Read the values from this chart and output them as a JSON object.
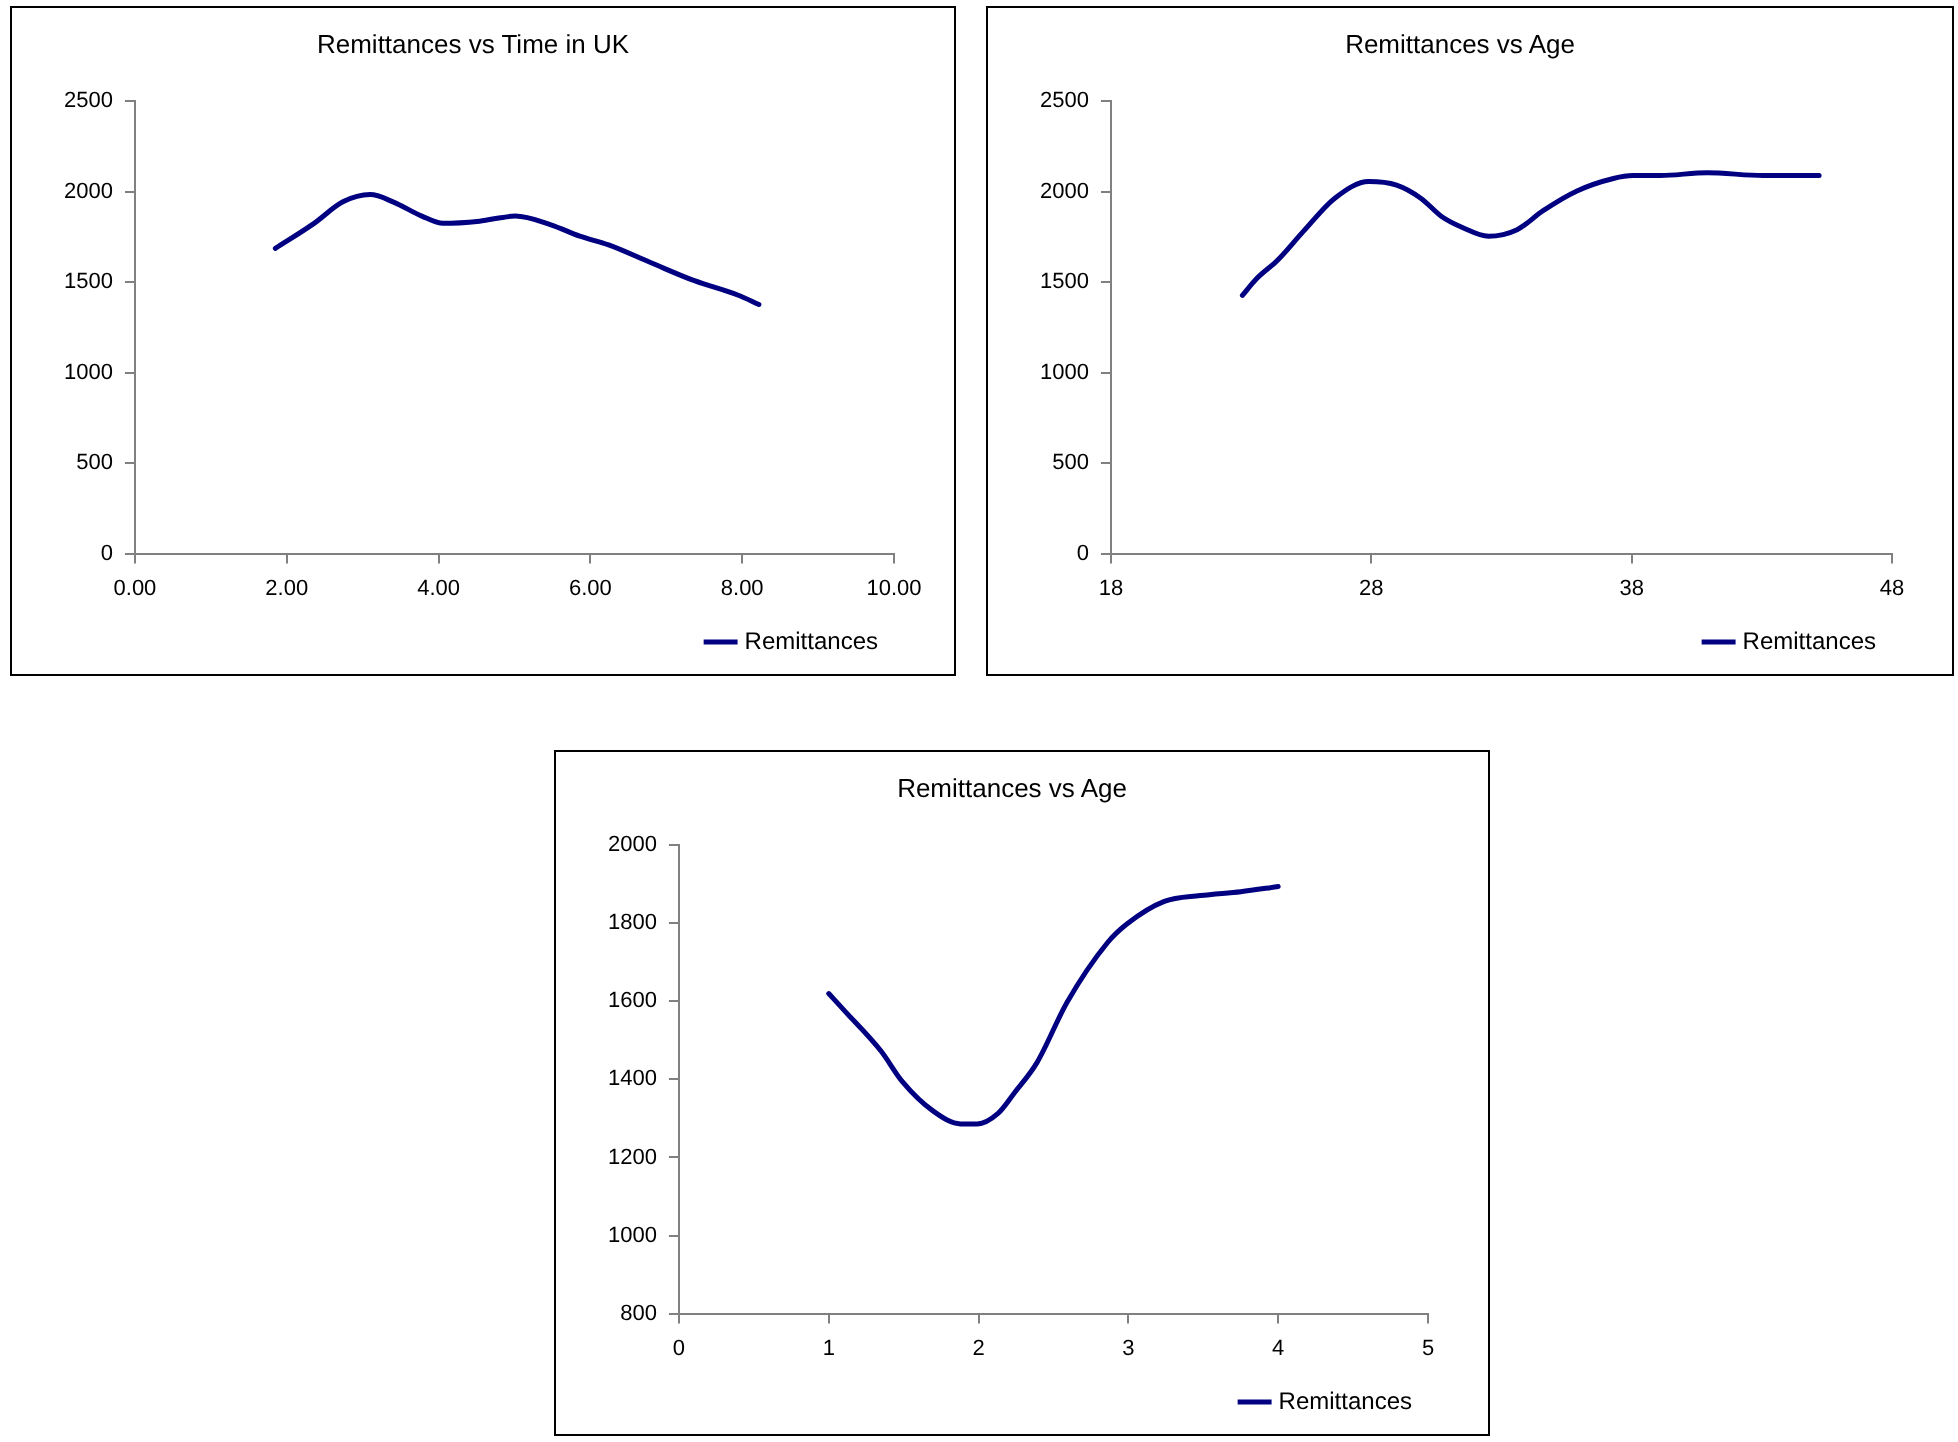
{
  "chart_data": [
    {
      "type": "line",
      "title": "Remittances vs Time in UK",
      "legend": "bottom right",
      "grid": false,
      "x": [
        1.85,
        2.36,
        2.74,
        3.1,
        3.4,
        3.78,
        4.06,
        4.54,
        5.01,
        5.48,
        5.86,
        6.24,
        6.8,
        7.37,
        7.94,
        8.22
      ],
      "series": [
        {
          "name": "Remittances",
          "color": "#000080",
          "values": [
            1687,
            1825,
            1944,
            1984,
            1944,
            1865,
            1825,
            1837,
            1865,
            1817,
            1754,
            1706,
            1607,
            1508,
            1429,
            1377
          ]
        }
      ],
      "xlim": [
        0,
        10
      ],
      "xticks": [
        {
          "value": 0,
          "label": "0.00"
        },
        {
          "value": 2,
          "label": "2.00"
        },
        {
          "value": 4,
          "label": "4.00"
        },
        {
          "value": 6,
          "label": "6.00"
        },
        {
          "value": 8,
          "label": "8.00"
        },
        {
          "value": 10,
          "label": "10.00"
        }
      ],
      "ylim": [
        0,
        2500
      ],
      "yticks": [
        0,
        500,
        1000,
        1500,
        2000,
        2500
      ]
    },
    {
      "type": "line",
      "title": "Remittances vs Age",
      "legend": "bottom right",
      "grid": false,
      "x": [
        23.05,
        23.6,
        24.4,
        25.4,
        26.6,
        27.9,
        28.97,
        29.9,
        30.7,
        31.5,
        32.5,
        33.6,
        34.6,
        35.9,
        37.3,
        38.05,
        39.1,
        40.9,
        43.05,
        45.2
      ],
      "series": [
        {
          "name": "Remittances",
          "color": "#000080",
          "values": [
            1427,
            1520,
            1621,
            1782,
            1964,
            2056,
            2036,
            1964,
            1863,
            1802,
            1754,
            1790,
            1895,
            2004,
            2073,
            2089,
            2089,
            2105,
            2089,
            2089
          ]
        }
      ],
      "xlim": [
        18,
        48
      ],
      "xticks": [
        18,
        28,
        38,
        48
      ],
      "ylim": [
        0,
        2500
      ],
      "yticks": [
        0,
        500,
        1000,
        1500,
        2000,
        2500
      ]
    },
    {
      "type": "line",
      "title": "Remittances vs Age",
      "legend": "bottom right",
      "grid": false,
      "x": [
        1.0,
        1.1,
        1.35,
        1.49,
        1.7,
        1.88,
        1.99,
        2.13,
        2.24,
        2.39,
        2.59,
        2.86,
        2.99,
        3.24,
        3.48,
        3.75,
        4.0
      ],
      "series": [
        {
          "name": "Remittances",
          "color": "#000080",
          "values": [
            1620,
            1578,
            1472,
            1395,
            1318,
            1286,
            1286,
            1313,
            1366,
            1443,
            1597,
            1750,
            1798,
            1856,
            1871,
            1881,
            1894
          ]
        }
      ],
      "xlim": [
        0,
        5
      ],
      "xticks": [
        0,
        1,
        2,
        3,
        4,
        5
      ],
      "ylim": [
        800,
        2000
      ],
      "yticks": [
        800,
        1000,
        1200,
        1400,
        1600,
        1800,
        2000
      ]
    }
  ]
}
